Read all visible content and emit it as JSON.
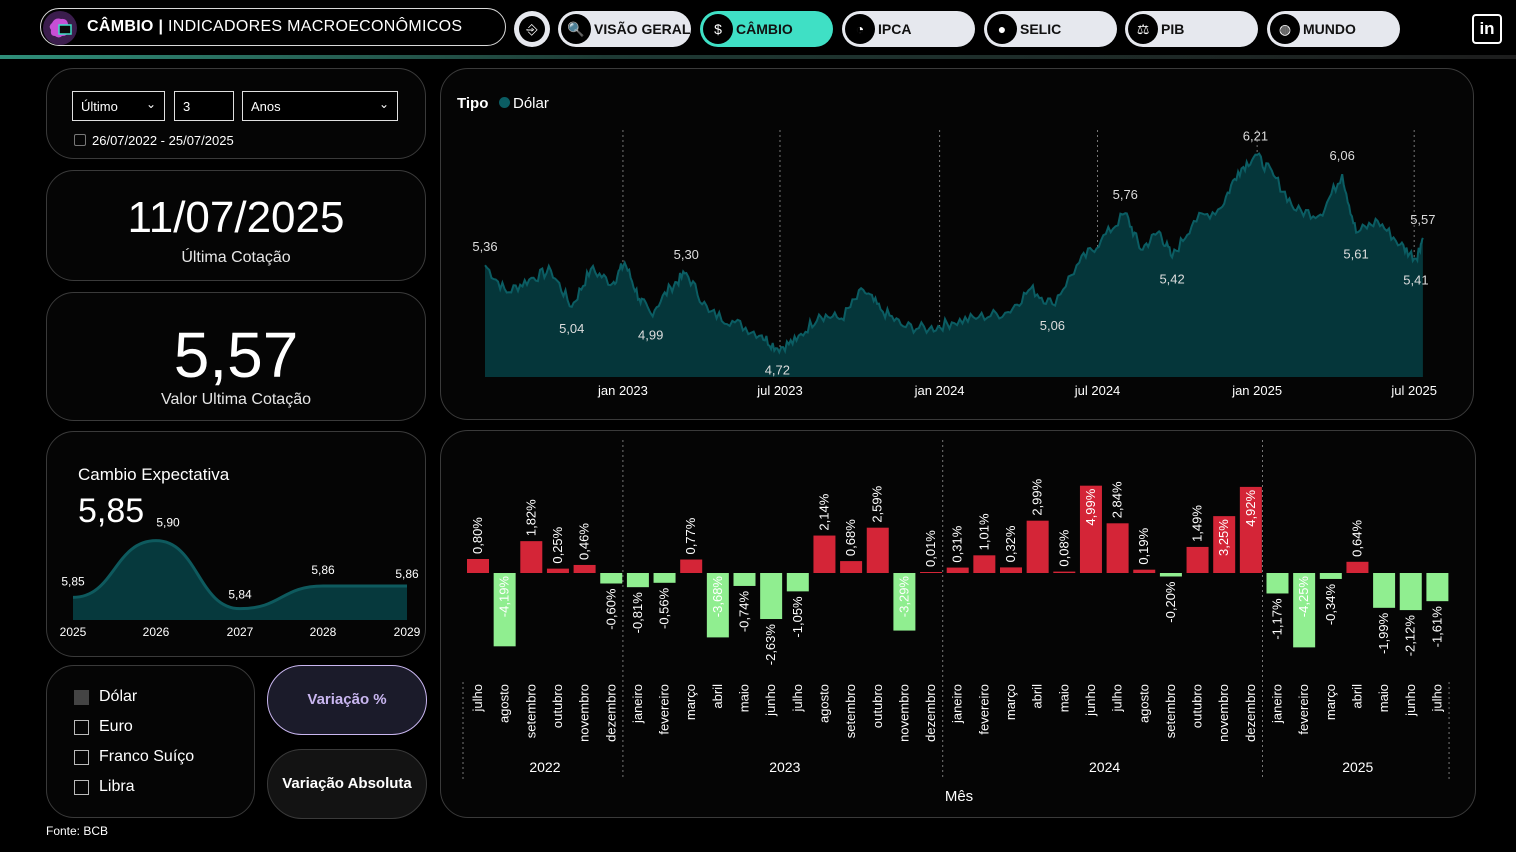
{
  "header": {
    "brand_title": "CÂMBIO",
    "brand_separator": "|",
    "brand_subtitle": "INDICADORES MACROECONÔMICOS",
    "back_icon": "exit-icon",
    "nav": [
      {
        "label": "VISÃO GERAL",
        "icon": "search-chart-icon",
        "active": false
      },
      {
        "label": "CÂMBIO",
        "icon": "dollar-icon",
        "active": true
      },
      {
        "label": "IPCA",
        "icon": "gauge-icon",
        "active": false
      },
      {
        "label": "SELIC",
        "icon": "piggy-bank-icon",
        "active": false
      },
      {
        "label": "PIB",
        "icon": "scale-icon",
        "active": false
      },
      {
        "label": "MUNDO",
        "icon": "globe-icon",
        "active": false
      }
    ],
    "linkedin_label": "in",
    "colors": {
      "active": "#3fe0c5",
      "inactive": "#e6e8ee"
    }
  },
  "filter": {
    "period_select": "Último",
    "period_value": "3",
    "unit_select": "Anos",
    "date_range": "26/07/2022 - 25/07/2025"
  },
  "kpi_date": {
    "value": "11/07/2025",
    "caption": "Última Cotação"
  },
  "kpi_value": {
    "value": "5,57",
    "caption": "Valor Ultima Cotação"
  },
  "expectation": {
    "title": "Cambio Expectativa",
    "headline": "5,85",
    "chart_data": {
      "type": "area",
      "x": [
        "2025",
        "2026",
        "2027",
        "2028",
        "2029"
      ],
      "values": [
        5.85,
        5.9,
        5.84,
        5.86,
        5.86
      ],
      "labels": [
        "5,85",
        "5,90",
        "5,84",
        "5,86",
        "5,86"
      ],
      "color": "#0e5a5e"
    }
  },
  "currencies": [
    {
      "label": "Dólar",
      "checked": true
    },
    {
      "label": "Euro",
      "checked": false
    },
    {
      "label": "Franco Suíço",
      "checked": false
    },
    {
      "label": "Libra",
      "checked": false
    }
  ],
  "buttons": {
    "variation_pct": "Variação %",
    "variation_abs": "Variação Absoluta"
  },
  "footer": "Fonte: BCB",
  "line_chart": {
    "legend_title": "Tipo",
    "legend_item": "Dólar",
    "chart_data": {
      "type": "area",
      "series_name": "Dólar",
      "color": "#0b5d63",
      "x_ticks": [
        "jan 2023",
        "jul 2023",
        "jan 2024",
        "jul 2024",
        "jan 2025",
        "jul 2025"
      ],
      "x_range": [
        "2022-07-26",
        "2025-07-25"
      ],
      "ylim": [
        4.5,
        6.4
      ],
      "points": [
        [
          "2022-07-26",
          5.36
        ],
        [
          "2022-08-20",
          5.15
        ],
        [
          "2022-09-15",
          5.25
        ],
        [
          "2022-10-10",
          5.32
        ],
        [
          "2022-11-03",
          5.04
        ],
        [
          "2022-11-25",
          5.33
        ],
        [
          "2022-12-20",
          5.22
        ],
        [
          "2023-01-03",
          5.38
        ],
        [
          "2023-01-20",
          5.1
        ],
        [
          "2023-02-02",
          4.99
        ],
        [
          "2023-02-25",
          5.19
        ],
        [
          "2023-03-15",
          5.3
        ],
        [
          "2023-04-10",
          5.0
        ],
        [
          "2023-05-10",
          4.92
        ],
        [
          "2023-06-10",
          4.82
        ],
        [
          "2023-06-28",
          4.72
        ],
        [
          "2023-07-20",
          4.78
        ],
        [
          "2023-08-15",
          4.98
        ],
        [
          "2023-09-10",
          4.95
        ],
        [
          "2023-10-05",
          5.17
        ],
        [
          "2023-10-25",
          5.02
        ],
        [
          "2023-11-20",
          4.89
        ],
        [
          "2023-12-20",
          4.87
        ],
        [
          "2024-01-15",
          4.92
        ],
        [
          "2024-02-15",
          4.96
        ],
        [
          "2024-03-20",
          5.0
        ],
        [
          "2024-04-15",
          5.18
        ],
        [
          "2024-05-10",
          5.06
        ],
        [
          "2024-06-10",
          5.38
        ],
        [
          "2024-07-05",
          5.55
        ],
        [
          "2024-08-02",
          5.76
        ],
        [
          "2024-08-20",
          5.48
        ],
        [
          "2024-09-10",
          5.62
        ],
        [
          "2024-09-25",
          5.42
        ],
        [
          "2024-10-20",
          5.7
        ],
        [
          "2024-11-20",
          5.8
        ],
        [
          "2024-12-10",
          6.08
        ],
        [
          "2024-12-30",
          6.21
        ],
        [
          "2025-01-20",
          6.05
        ],
        [
          "2025-02-15",
          5.78
        ],
        [
          "2025-03-15",
          5.75
        ],
        [
          "2025-04-09",
          6.06
        ],
        [
          "2025-04-25",
          5.61
        ],
        [
          "2025-05-20",
          5.7
        ],
        [
          "2025-06-15",
          5.52
        ],
        [
          "2025-07-03",
          5.41
        ],
        [
          "2025-07-11",
          5.57
        ]
      ],
      "labels": [
        {
          "x": "2022-07-26",
          "text": "5,36",
          "pos": "above"
        },
        {
          "x": "2022-11-03",
          "text": "5,04",
          "pos": "below"
        },
        {
          "x": "2023-02-02",
          "text": "4,99",
          "pos": "below"
        },
        {
          "x": "2023-03-15",
          "text": "5,30",
          "pos": "above"
        },
        {
          "x": "2023-06-28",
          "text": "4,72",
          "pos": "below"
        },
        {
          "x": "2024-05-10",
          "text": "5,06",
          "pos": "below"
        },
        {
          "x": "2024-08-02",
          "text": "5,76",
          "pos": "above"
        },
        {
          "x": "2024-09-25",
          "text": "5,42",
          "pos": "below"
        },
        {
          "x": "2024-12-30",
          "text": "6,21",
          "pos": "above"
        },
        {
          "x": "2025-04-09",
          "text": "6,06",
          "pos": "above"
        },
        {
          "x": "2025-04-25",
          "text": "5,61",
          "pos": "below"
        },
        {
          "x": "2025-07-03",
          "text": "5,41",
          "pos": "below"
        },
        {
          "x": "2025-07-11",
          "text": "5,57",
          "pos": "above"
        }
      ]
    }
  },
  "bar_chart": {
    "xlabel": "Mês",
    "chart_data": {
      "type": "bar",
      "positive_color": "#d42537",
      "negative_color": "#90ee90",
      "ylim": [
        -5,
        5
      ],
      "years": [
        {
          "label": "2022",
          "count": 6
        },
        {
          "label": "2023",
          "count": 12
        },
        {
          "label": "2024",
          "count": 12
        },
        {
          "label": "2025",
          "count": 7
        }
      ],
      "categories": [
        "julho",
        "agosto",
        "setembro",
        "outubro",
        "novembro",
        "dezembro",
        "janeiro",
        "fevereiro",
        "março",
        "abril",
        "maio",
        "junho",
        "julho",
        "agosto",
        "setembro",
        "outubro",
        "novembro",
        "dezembro",
        "janeiro",
        "fevereiro",
        "março",
        "abril",
        "maio",
        "junho",
        "julho",
        "agosto",
        "setembro",
        "outubro",
        "novembro",
        "dezembro",
        "janeiro",
        "fevereiro",
        "março",
        "abril",
        "maio",
        "junho",
        "julho"
      ],
      "values": [
        0.8,
        -4.19,
        1.82,
        0.25,
        0.46,
        -0.6,
        -0.81,
        -0.56,
        0.77,
        -3.68,
        -0.74,
        -2.63,
        -1.05,
        2.14,
        0.68,
        2.59,
        -3.29,
        0.01,
        0.31,
        1.01,
        0.32,
        2.99,
        0.08,
        4.99,
        2.84,
        0.19,
        -0.2,
        1.49,
        3.25,
        4.92,
        -1.17,
        -4.25,
        -0.34,
        0.64,
        -1.99,
        -2.12,
        -1.61
      ],
      "labels": [
        "0,80%",
        "-4,19%",
        "1,82%",
        "0,25%",
        "0,46%",
        "-0,60%",
        "-0,81%",
        "-0,56%",
        "0,77%",
        "-3,68%",
        "-0,74%",
        "-2,63%",
        "-1,05%",
        "2,14%",
        "0,68%",
        "2,59%",
        "-3,29%",
        "0,01%",
        "0,31%",
        "1,01%",
        "0,32%",
        "2,99%",
        "0,08%",
        "4,99%",
        "2,84%",
        "0,19%",
        "-0,20%",
        "1,49%",
        "3,25%",
        "4,92%",
        "-1,17%",
        "-4,25%",
        "-0,34%",
        "0,64%",
        "-1,99%",
        "-2,12%",
        "-1,61%"
      ]
    }
  }
}
